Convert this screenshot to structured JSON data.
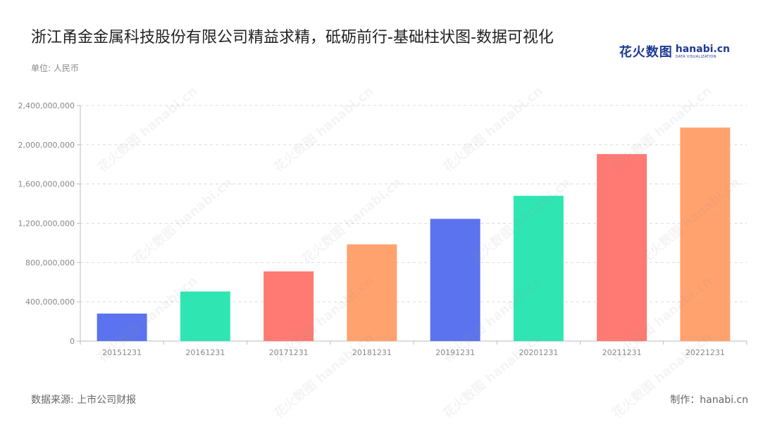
{
  "header": {
    "title": "浙江甬金金属科技股份有限公司精益求精，砥砺前行-基础柱状图-数据可视化",
    "unit_label": "单位: 人民币"
  },
  "logo": {
    "cn_text": "花火数图",
    "en_text": "hanabi.cn",
    "sub_text": "DATA VISUALIZATION",
    "brand_color": "#1f3a93"
  },
  "footer": {
    "source": "数据来源: 上市公司财报",
    "credit": "制作：hanabi.cn"
  },
  "chart_data": {
    "type": "bar",
    "categories": [
      "20151231",
      "20161231",
      "20171231",
      "20181231",
      "20191231",
      "20201231",
      "20211231",
      "20221231"
    ],
    "values": [
      280000000,
      505000000,
      710000000,
      985000000,
      1245000000,
      1480000000,
      1905000000,
      2175000000
    ],
    "colors": [
      "#5b73ee",
      "#2fe6b3",
      "#ff7a72",
      "#ffa26e",
      "#5b73ee",
      "#2fe6b3",
      "#ff7a72",
      "#ffa26e"
    ],
    "ylim": [
      0,
      2400000000
    ],
    "yticks": [
      0,
      400000000,
      800000000,
      1200000000,
      1600000000,
      2000000000,
      2400000000
    ],
    "ytick_labels": [
      "0",
      "400,000,000",
      "800,000,000",
      "1,200,000,000",
      "1,600,000,000",
      "2,000,000,000",
      "2,400,000,000"
    ],
    "grid": true,
    "legend": "none"
  }
}
